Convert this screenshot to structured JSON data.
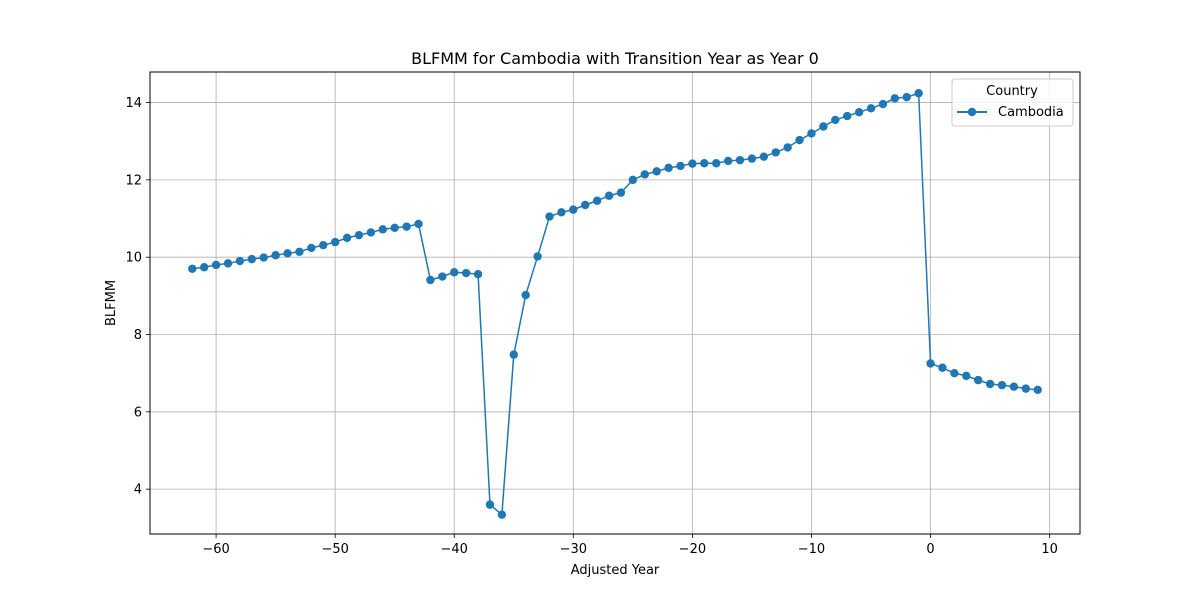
{
  "chart_data": {
    "type": "line",
    "title": "BLFMM for Cambodia with Transition Year as Year 0",
    "xlabel": "Adjusted Year",
    "ylabel": "BLFMM",
    "xlim": [
      -65.55,
      12.55
    ],
    "ylim": [
      2.84,
      14.79
    ],
    "xticks": [
      -60,
      -50,
      -40,
      -30,
      -20,
      -10,
      0,
      10
    ],
    "xtick_labels": [
      "−60",
      "−50",
      "−40",
      "−30",
      "−20",
      "−10",
      "0",
      "10"
    ],
    "yticks": [
      4,
      6,
      8,
      10,
      12,
      14
    ],
    "ytick_labels": [
      "4",
      "6",
      "8",
      "10",
      "12",
      "14"
    ],
    "grid": true,
    "legend": {
      "title": "Country",
      "placement": "top-right"
    },
    "colors": {
      "series": "#1f77b4",
      "grid": "#b0b0b0"
    },
    "series": [
      {
        "name": "Cambodia",
        "marker": "circle",
        "x": [
          -62,
          -61,
          -60,
          -59,
          -58,
          -57,
          -56,
          -55,
          -54,
          -53,
          -52,
          -51,
          -50,
          -49,
          -48,
          -47,
          -46,
          -45,
          -44,
          -43,
          -42,
          -41,
          -40,
          -39,
          -38,
          -37,
          -36,
          -35,
          -34,
          -33,
          -32,
          -31,
          -30,
          -29,
          -28,
          -27,
          -26,
          -25,
          -24,
          -23,
          -22,
          -21,
          -20,
          -19,
          -18,
          -17,
          -16,
          -15,
          -14,
          -13,
          -12,
          -11,
          -10,
          -9,
          -8,
          -7,
          -6,
          -5,
          -4,
          -3,
          -2,
          -1,
          0,
          1,
          2,
          3,
          4,
          5,
          6,
          7,
          8,
          9
        ],
        "y": [
          9.7,
          9.74,
          9.8,
          9.84,
          9.9,
          9.95,
          9.99,
          10.05,
          10.1,
          10.14,
          10.24,
          10.31,
          10.39,
          10.5,
          10.57,
          10.64,
          10.72,
          10.76,
          10.79,
          10.86,
          9.41,
          9.5,
          9.61,
          9.59,
          9.56,
          3.6,
          3.34,
          7.48,
          9.02,
          10.02,
          11.05,
          11.16,
          11.23,
          11.35,
          11.46,
          11.59,
          11.67,
          12.0,
          12.14,
          12.22,
          12.31,
          12.36,
          12.42,
          12.43,
          12.43,
          12.49,
          12.51,
          12.55,
          12.6,
          12.71,
          12.84,
          13.03,
          13.2,
          13.38,
          13.55,
          13.65,
          13.75,
          13.85,
          13.96,
          14.11,
          14.14,
          14.24,
          7.25,
          7.14,
          7.0,
          6.93,
          6.82,
          6.72,
          6.69,
          6.65,
          6.6,
          6.57
        ]
      }
    ]
  }
}
